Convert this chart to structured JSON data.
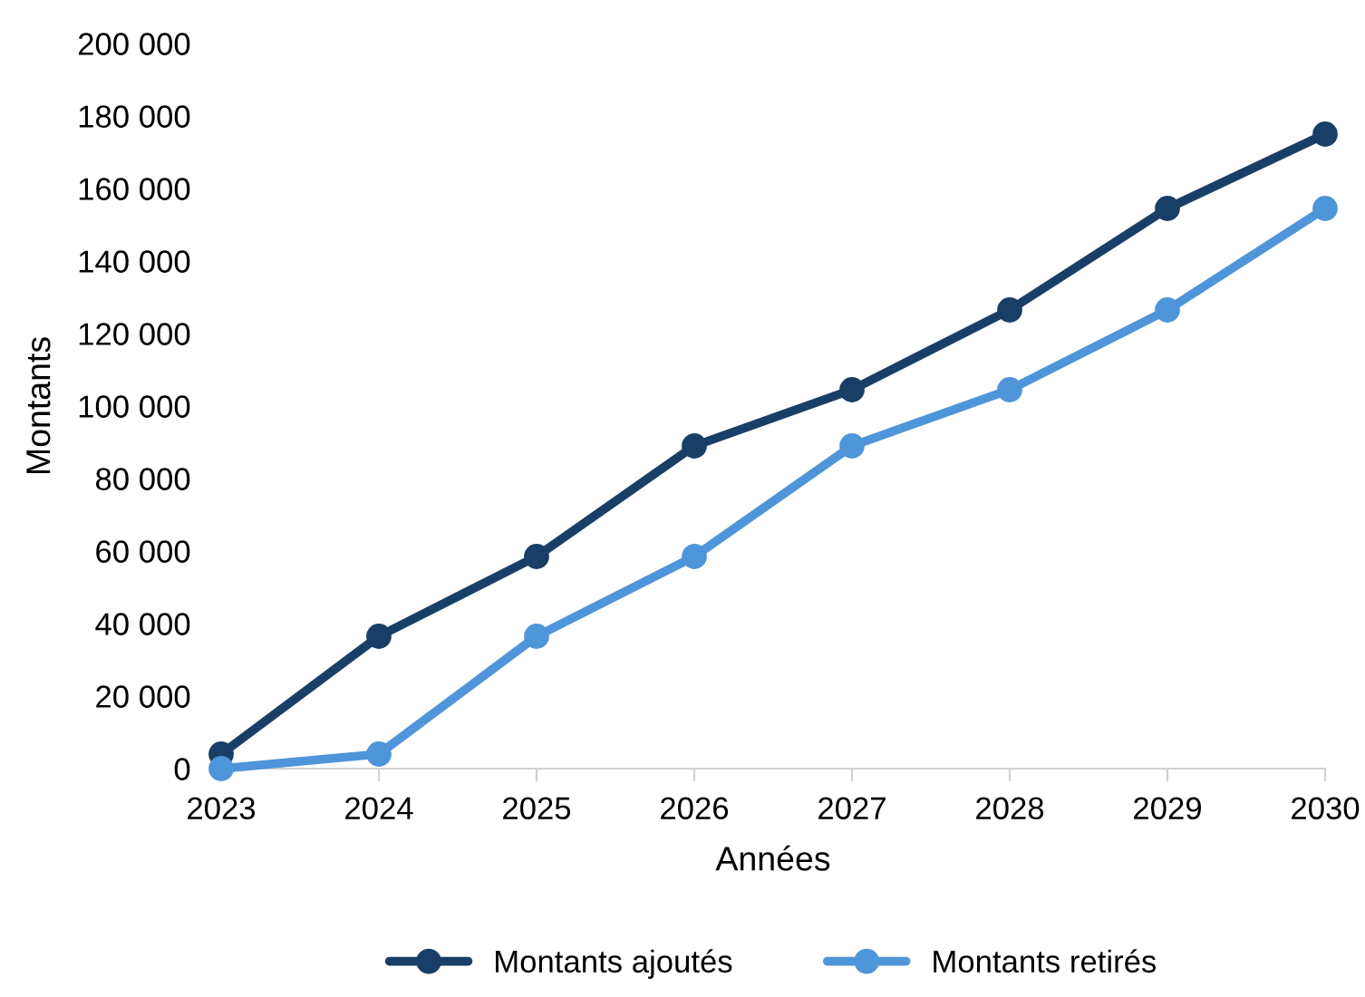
{
  "chart_data": {
    "type": "line",
    "xlabel": "Années",
    "ylabel": "Montants",
    "x": [
      2023,
      2024,
      2025,
      2026,
      2027,
      2028,
      2029,
      2030
    ],
    "xlim": [
      2023,
      2030
    ],
    "xticks": [
      2023,
      2024,
      2025,
      2026,
      2027,
      2028,
      2029,
      2030
    ],
    "ylim": [
      0,
      200000
    ],
    "yticks": [
      0,
      {
        "value": 20000,
        "label": "20 000"
      },
      {
        "value": 40000,
        "label": "40 000"
      },
      {
        "value": 60000,
        "label": "60 000"
      },
      {
        "value": 80000,
        "label": "80 000"
      },
      {
        "value": 100000,
        "label": "100 000"
      },
      {
        "value": 120000,
        "label": "120 000"
      },
      {
        "value": 140000,
        "label": "140 000"
      },
      {
        "value": 160000,
        "label": "160 000"
      },
      {
        "value": 180000,
        "label": "180 000"
      },
      {
        "value": 200000,
        "label": "200 000"
      }
    ],
    "series": [
      {
        "name": "Montants ajoutés",
        "color": "#1a3f66",
        "values": [
          4000,
          36500,
          58500,
          89000,
          104500,
          126500,
          154500,
          175000
        ]
      },
      {
        "name": "Montants retirés",
        "color": "#4f95d9",
        "values": [
          0,
          4000,
          36500,
          58500,
          89000,
          104500,
          126500,
          154500
        ]
      }
    ],
    "grid": false,
    "legend": "bottom",
    "marker": "circle",
    "line_style": "solid"
  }
}
